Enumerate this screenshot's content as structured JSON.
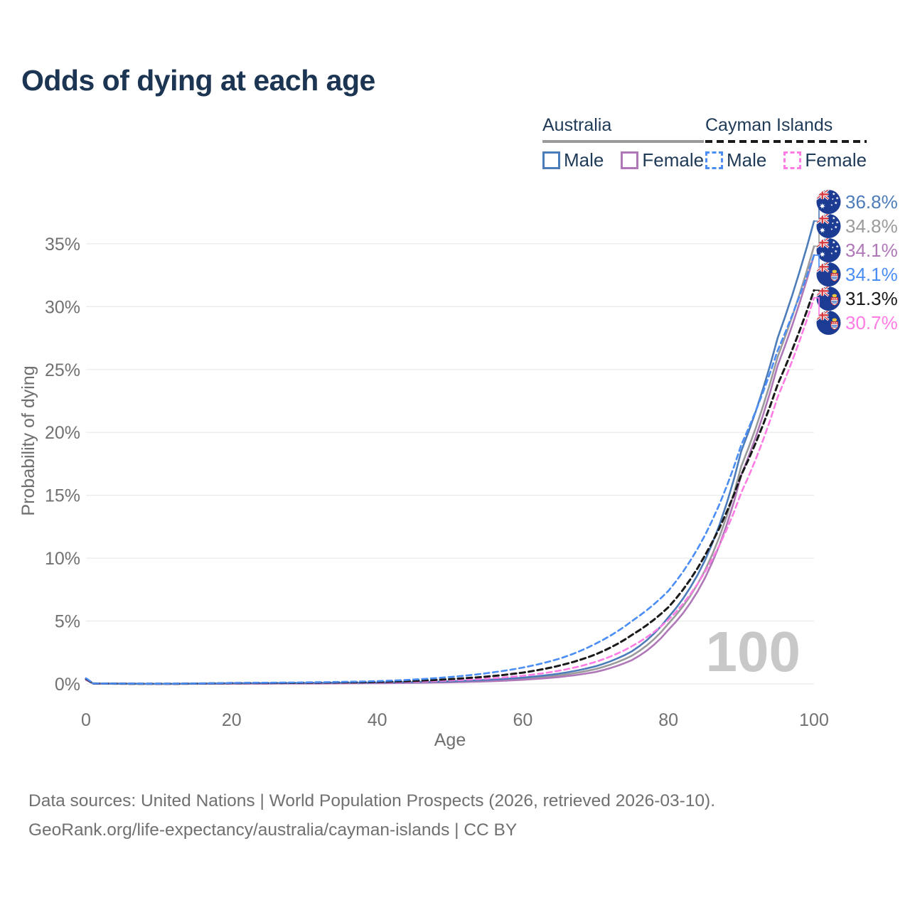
{
  "title": "Odds of dying at each age",
  "legend": {
    "groups": [
      {
        "label": "Australia",
        "line_style": "solid",
        "line_color": "#9a9a9a",
        "items": [
          {
            "label": "Male",
            "color": "#4d7cbb",
            "dashed": false
          },
          {
            "label": "Female",
            "color": "#b077b8",
            "dashed": false
          }
        ]
      },
      {
        "label": "Cayman Islands",
        "line_style": "dashed",
        "line_color": "#1a1a1a",
        "items": [
          {
            "label": "Male",
            "color": "#4a8df5",
            "dashed": true
          },
          {
            "label": "Female",
            "color": "#ff7ce5",
            "dashed": true
          }
        ]
      }
    ]
  },
  "chart_data": {
    "type": "line",
    "title": "Odds of dying at each age",
    "xlabel": "Age",
    "ylabel": "Probability of dying",
    "x_ticks": [
      0,
      20,
      40,
      60,
      80,
      100
    ],
    "y_tick_labels": [
      "0%",
      "5%",
      "10%",
      "15%",
      "20%",
      "25%",
      "30%",
      "35%"
    ],
    "y_tick_values": [
      0,
      5,
      10,
      15,
      20,
      25,
      30,
      35
    ],
    "xlim": [
      0,
      100
    ],
    "ylim": [
      0,
      38.5
    ],
    "grid": "horizontal",
    "legend_position": "top-right",
    "watermark": "100",
    "ages": [
      0,
      1,
      10,
      20,
      30,
      40,
      50,
      55,
      60,
      65,
      70,
      75,
      80,
      85,
      90,
      95,
      100
    ],
    "series": [
      {
        "name": "Australia Both sexes",
        "country": "Australia",
        "sex": "both",
        "color": "#9b9b9b",
        "dashed": false,
        "flag": "au",
        "end_label": "34.8%",
        "values": [
          0.35,
          0.025,
          0.009,
          0.035,
          0.05,
          0.08,
          0.17,
          0.26,
          0.42,
          0.68,
          1.18,
          2.25,
          4.8,
          9.0,
          17.3,
          26.0,
          34.8
        ]
      },
      {
        "name": "Australia Female",
        "country": "Australia",
        "sex": "female",
        "color": "#b077b8",
        "dashed": false,
        "flag": "au",
        "end_label": "34.1%",
        "values": [
          0.32,
          0.02,
          0.008,
          0.02,
          0.03,
          0.06,
          0.13,
          0.2,
          0.33,
          0.55,
          0.95,
          1.9,
          4.3,
          8.4,
          16.6,
          25.3,
          34.1
        ]
      },
      {
        "name": "Australia Male",
        "country": "Australia",
        "sex": "male",
        "color": "#4d7cbb",
        "dashed": false,
        "flag": "au",
        "end_label": "36.8%",
        "values": [
          0.38,
          0.03,
          0.01,
          0.05,
          0.07,
          0.1,
          0.21,
          0.32,
          0.5,
          0.82,
          1.4,
          2.6,
          5.3,
          9.8,
          18.5,
          27.5,
          36.8
        ]
      },
      {
        "name": "Cayman Islands Female",
        "country": "Cayman Islands",
        "sex": "female",
        "color": "#ff7ce5",
        "dashed": true,
        "flag": "ky",
        "end_label": "30.7%",
        "values": [
          0.36,
          0.03,
          0.01,
          0.04,
          0.07,
          0.11,
          0.28,
          0.42,
          0.65,
          1.05,
          1.75,
          3.0,
          5.1,
          8.9,
          15.2,
          22.8,
          30.7
        ]
      },
      {
        "name": "Cayman Islands Both sexes",
        "country": "Cayman Islands",
        "sex": "both",
        "color": "#1a1a1a",
        "dashed": true,
        "flag": "ky",
        "end_label": "31.3%",
        "values": [
          0.4,
          0.035,
          0.012,
          0.06,
          0.09,
          0.15,
          0.38,
          0.58,
          0.9,
          1.45,
          2.35,
          3.9,
          6.1,
          10.2,
          16.6,
          23.8,
          31.3
        ]
      },
      {
        "name": "Cayman Islands Male",
        "country": "Cayman Islands",
        "sex": "male",
        "color": "#4a8df5",
        "dashed": true,
        "flag": "ky",
        "end_label": "34.1%",
        "values": [
          0.45,
          0.04,
          0.015,
          0.08,
          0.12,
          0.22,
          0.55,
          0.85,
          1.3,
          2.0,
          3.2,
          5.0,
          7.4,
          11.8,
          19.0,
          26.5,
          34.1
        ]
      }
    ]
  },
  "footer": {
    "line1": "Data sources: United Nations | World Population Prospects (2026, retrieved 2026-03-10).",
    "line2": "GeoRank.org/life-expectancy/australia/cayman-islands | CC BY"
  }
}
